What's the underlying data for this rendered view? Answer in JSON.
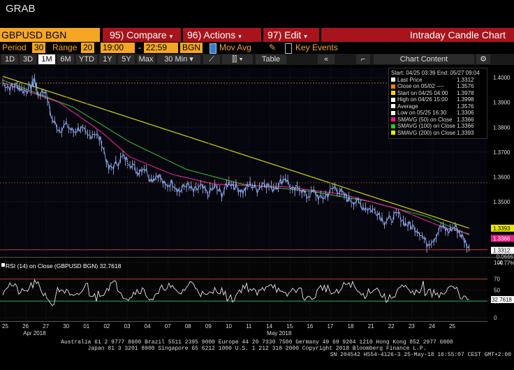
{
  "window": {
    "title": "GRAB"
  },
  "toolbar": {
    "security": "GBPUSD BGN Curncy",
    "compare": "95) Compare",
    "actions": "96) Actions",
    "edit": "97) Edit",
    "chart_type": "Intraday Candle Chart",
    "dropdown_glyph": "▾"
  },
  "settings": {
    "period_label": "Period",
    "period_value": "30",
    "range_label": "Range",
    "range_value": "20",
    "time_start": "19:00",
    "time_dash": "-",
    "time_end": "22:59",
    "source": "BGN",
    "mov_avg_label": "Mov Avg",
    "key_events_label": "Key Events"
  },
  "ranges": [
    "1D",
    "3D",
    "1M",
    "6M",
    "YTD",
    "1Y",
    "5Y",
    "Max"
  ],
  "interval": "30 Min",
  "table_label": "Table",
  "chart_content_label": "Chart Content",
  "legend": {
    "header": "Start: 04/25 03:39 End: 05/27 09:04",
    "rows": [
      {
        "label": "Last Price",
        "value": "1.3312",
        "color": "#ffffff"
      },
      {
        "label": "Close on 05/02 ----",
        "value": "1.3576",
        "color": "#ff7f00"
      },
      {
        "label": "Start on 04/25 04:00",
        "value": "1.3978",
        "color": "#ffd700"
      },
      {
        "label": "High on 04/26 15:00",
        "value": "1.3998",
        "color": "#ffffff"
      },
      {
        "label": "Average",
        "value": "1.3576",
        "color": "#ffffff"
      },
      {
        "label": "Low on 05/25 16:30",
        "value": "1.3306",
        "color": "#ffffff"
      },
      {
        "label": "SMAVG (50) on Close",
        "value": "1.3366",
        "color": "#ff1493"
      },
      {
        "label": "SMAVG (100) on Close",
        "value": "1.3366",
        "color": "#22cc22"
      },
      {
        "label": "SMAVG (200) on Close",
        "value": "1.3393",
        "color": "#e8e800"
      }
    ]
  },
  "chart_data": [
    {
      "type": "line",
      "ylim": [
        1.328,
        1.404
      ],
      "yticks": [
        "1.4000",
        "1.3900",
        "1.3800",
        "1.3700",
        "1.3600",
        "1.3500"
      ],
      "ytick_values": [
        1.4,
        1.39,
        1.38,
        1.37,
        1.36,
        1.35
      ],
      "price_points": [
        [
          0,
          1.3978
        ],
        [
          1,
          1.396
        ],
        [
          2,
          1.397
        ],
        [
          3,
          1.3945
        ],
        [
          4,
          1.396
        ],
        [
          4.5,
          1.3995
        ],
        [
          5,
          1.393
        ],
        [
          6,
          1.395
        ],
        [
          7,
          1.383
        ],
        [
          8,
          1.379
        ],
        [
          9,
          1.381
        ],
        [
          10,
          1.378
        ],
        [
          11,
          1.38
        ],
        [
          12,
          1.376
        ],
        [
          13,
          1.378
        ],
        [
          14,
          1.374
        ],
        [
          15,
          1.363
        ],
        [
          16,
          1.365
        ],
        [
          17,
          1.368
        ],
        [
          18,
          1.366
        ],
        [
          19,
          1.362
        ],
        [
          20,
          1.364
        ],
        [
          21,
          1.359
        ],
        [
          22,
          1.361
        ],
        [
          23,
          1.356
        ],
        [
          24,
          1.358
        ],
        [
          25,
          1.354
        ],
        [
          26,
          1.357
        ],
        [
          27,
          1.354
        ],
        [
          28,
          1.356
        ],
        [
          29,
          1.353
        ],
        [
          30,
          1.356
        ],
        [
          31,
          1.353
        ],
        [
          32,
          1.358
        ],
        [
          33,
          1.356
        ],
        [
          34,
          1.354
        ],
        [
          35,
          1.357
        ],
        [
          36,
          1.355
        ],
        [
          37,
          1.358
        ],
        [
          38,
          1.355
        ],
        [
          39,
          1.357
        ],
        [
          40,
          1.36
        ],
        [
          41,
          1.354
        ],
        [
          42,
          1.356
        ],
        [
          43,
          1.352
        ],
        [
          44,
          1.354
        ],
        [
          45,
          1.351
        ],
        [
          46,
          1.353
        ],
        [
          47,
          1.356
        ],
        [
          48,
          1.353
        ],
        [
          49,
          1.351
        ],
        [
          50,
          1.35
        ],
        [
          51,
          1.348
        ],
        [
          52,
          1.347
        ],
        [
          53,
          1.346
        ],
        [
          54,
          1.342
        ],
        [
          55,
          1.343
        ],
        [
          56,
          1.345
        ],
        [
          57,
          1.341
        ],
        [
          58,
          1.34
        ],
        [
          59,
          1.338
        ],
        [
          60,
          1.333
        ],
        [
          61,
          1.335
        ],
        [
          62,
          1.34
        ],
        [
          63,
          1.338
        ],
        [
          64,
          1.34
        ],
        [
          65,
          1.336
        ],
        [
          66,
          1.3312
        ]
      ],
      "sma50": [
        [
          0,
          1.398
        ],
        [
          8,
          1.39
        ],
        [
          14,
          1.378
        ],
        [
          18,
          1.368
        ],
        [
          24,
          1.361
        ],
        [
          30,
          1.357
        ],
        [
          40,
          1.356
        ],
        [
          48,
          1.353
        ],
        [
          56,
          1.347
        ],
        [
          62,
          1.34
        ],
        [
          66,
          1.337
        ]
      ],
      "sma100": [
        [
          0,
          1.399
        ],
        [
          10,
          1.388
        ],
        [
          18,
          1.374
        ],
        [
          26,
          1.363
        ],
        [
          34,
          1.357
        ],
        [
          44,
          1.354
        ],
        [
          52,
          1.35
        ],
        [
          60,
          1.344
        ],
        [
          66,
          1.3366
        ]
      ],
      "sma200": [
        [
          0,
          1.4005
        ],
        [
          66,
          1.3393
        ]
      ],
      "hlines": {
        "start": 1.3978,
        "close_0502": 1.3576,
        "average": 1.3576,
        "low": 1.3306
      },
      "right_labels": {
        "sma200": "1.3393",
        "sma": "1.3366",
        "last": "1.3312",
        "change": "-0.0666",
        "change_pct": "-4.77%"
      }
    },
    {
      "type": "line",
      "title": "RSI (14) on Close (GBPUSD BGN) 32.7618",
      "ylim": [
        0,
        100
      ],
      "yticks": [
        "100",
        "70",
        "50",
        "30",
        "0"
      ],
      "ytick_values": [
        100,
        70,
        50,
        30,
        0
      ],
      "overbought": 70,
      "oversold": 30,
      "last_value": "32.7618"
    }
  ],
  "xaxis": {
    "ticks": [
      "25",
      "26",
      "27",
      "30",
      "01",
      "02",
      "03",
      "04",
      "07",
      "08",
      "09",
      "10",
      "11",
      "14",
      "15",
      "16",
      "17",
      "18",
      "21",
      "22",
      "23",
      "24",
      "25"
    ],
    "month_labels": [
      {
        "label": "Apr 2018",
        "at": 1
      },
      {
        "label": "May 2018",
        "at": 13
      }
    ]
  },
  "footer": {
    "line1": "Australia 61 2 9777 8600 Brazil 5511 2395 9000 Europe 44 20 7330 7500 Germany 49 69 9204 1210 Hong Kong 852 2977 6000",
    "line2": "Japan 81 3 3201 8900        Singapore 65 6212 1000        U.S. 1 212 318 2000           Copyright 2018 Bloomberg Finance L.P.",
    "line3": "SN 204542 H554-4126-3 25-May-18 16:55:07 CEST GMT+2:00"
  }
}
